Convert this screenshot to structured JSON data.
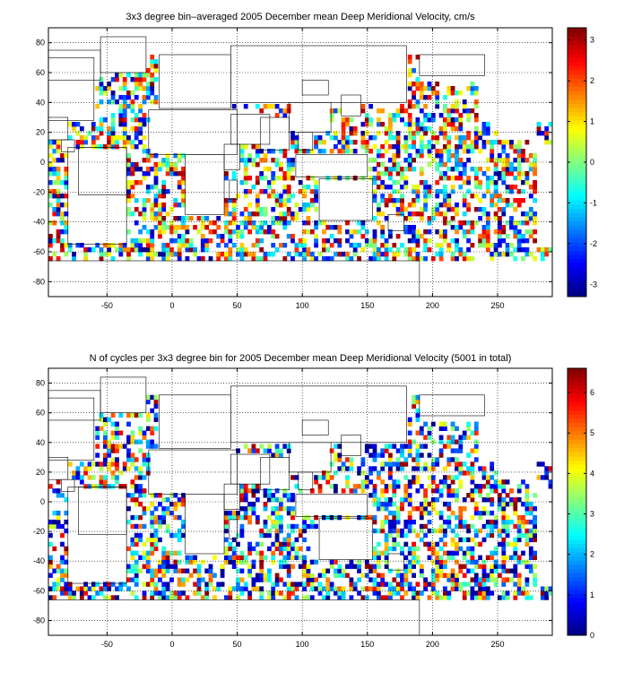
{
  "chart_data": [
    {
      "type": "heatmap",
      "title": "3x3 degree bin–averaged 2005 December mean Deep Meridional Velocity, cm/s",
      "xlabel": "",
      "ylabel": "",
      "xlim": [
        -95,
        292
      ],
      "ylim": [
        -90,
        90
      ],
      "xticks": [
        -50,
        0,
        50,
        100,
        150,
        200,
        250
      ],
      "yticks": [
        -80,
        -60,
        -40,
        -20,
        0,
        20,
        40,
        60,
        80
      ],
      "grid": true,
      "grid_style": "dotted",
      "bin_size_deg": 3,
      "colormap": "jet",
      "clim": [
        -3.3,
        3.3
      ],
      "colorbar_ticks": [
        -3,
        -2,
        -1,
        0,
        1,
        2,
        3
      ],
      "colorbar_position": "right",
      "seed": 7
    },
    {
      "type": "heatmap",
      "title": "N of cycles per 3x3 degree bin for 2005 December mean Deep Meridional Velocity (5001 in total)",
      "xlabel": "",
      "ylabel": "",
      "xlim": [
        -95,
        292
      ],
      "ylim": [
        -90,
        90
      ],
      "xticks": [
        -50,
        0,
        50,
        100,
        150,
        200,
        250
      ],
      "yticks": [
        -80,
        -60,
        -40,
        -20,
        0,
        20,
        40,
        60,
        80
      ],
      "grid": true,
      "grid_style": "dotted",
      "bin_size_deg": 3,
      "colormap": "jet",
      "clim": [
        0,
        6.6
      ],
      "colorbar_ticks": [
        0,
        1,
        2,
        3,
        4,
        5,
        6
      ],
      "colorbar_position": "right",
      "total_cycles": 5001,
      "seed": 19
    }
  ]
}
